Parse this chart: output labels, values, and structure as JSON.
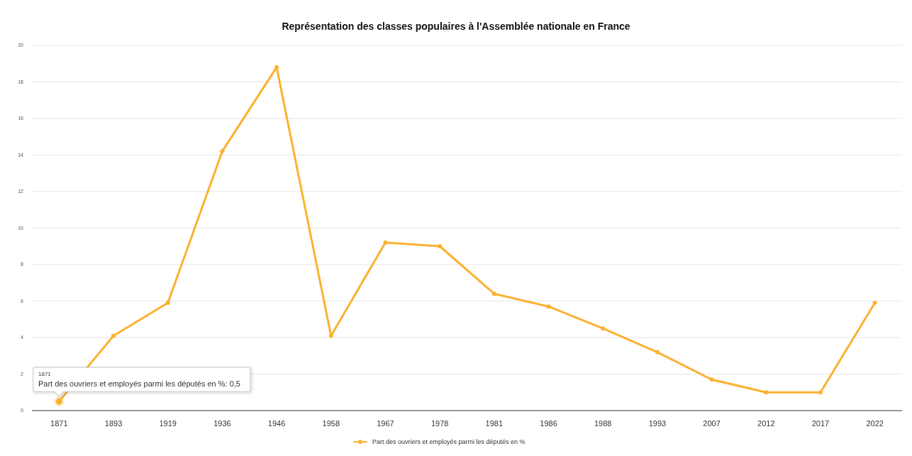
{
  "chart_data": {
    "type": "line",
    "title": "Représentation des classes populaires à l'Assemblée nationale en France",
    "categories": [
      "1871",
      "1893",
      "1919",
      "1936",
      "1946",
      "1958",
      "1967",
      "1978",
      "1981",
      "1986",
      "1988",
      "1993",
      "2007",
      "2012",
      "2017",
      "2022"
    ],
    "series": [
      {
        "name": "Part des ouvriers et employés parmi les députés en %",
        "color": "#fbb130",
        "values": [
          0.5,
          4.1,
          5.9,
          14.2,
          18.8,
          4.1,
          9.2,
          9.0,
          6.4,
          5.7,
          4.5,
          3.2,
          1.7,
          1.0,
          1.0,
          5.9
        ]
      }
    ],
    "ylim": [
      0,
      20
    ],
    "yticks": [
      0,
      2,
      4,
      6,
      8,
      10,
      12,
      14,
      16,
      18,
      20
    ],
    "grid": "y",
    "legend": "bottom",
    "marker": "circle",
    "line_style": "solid",
    "annotations": [
      {
        "text": "1871\nPart des ouvriers et employés parmi les députés en %: 0,5",
        "x": "1871",
        "y": 0.5
      }
    ]
  }
}
